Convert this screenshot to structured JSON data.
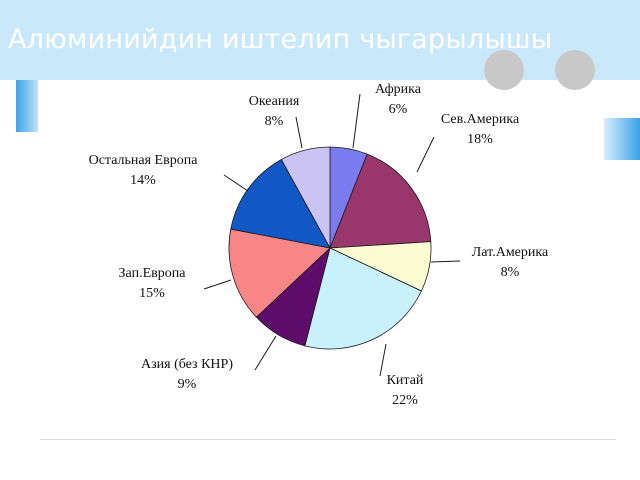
{
  "slide": {
    "title": "Алюминийдин иштелип чыгарылышы"
  },
  "chart_data": {
    "type": "pie",
    "title": "",
    "slices": [
      {
        "label": "Африка",
        "value": 6,
        "value_label": "6%",
        "color": "#7b7bf0"
      },
      {
        "label": "Сев.Америка",
        "value": 18,
        "value_label": "18%",
        "color": "#99366b"
      },
      {
        "label": "Лат.Америка",
        "value": 8,
        "value_label": "8%",
        "color": "#fbfbd2"
      },
      {
        "label": "Китай",
        "value": 22,
        "value_label": "22%",
        "color": "#c9f1fb"
      },
      {
        "label": "Азия (без КНР)",
        "value": 9,
        "value_label": "9%",
        "color": "#5e0b6b"
      },
      {
        "label": "Зап.Европа",
        "value": 15,
        "value_label": "15%",
        "color": "#f98686"
      },
      {
        "label": "Остальная Европа",
        "value": 14,
        "value_label": "14%",
        "color": "#1258c4"
      },
      {
        "label": "Океания",
        "value": 8,
        "value_label": "8%",
        "color": "#cbc4f3"
      }
    ]
  }
}
